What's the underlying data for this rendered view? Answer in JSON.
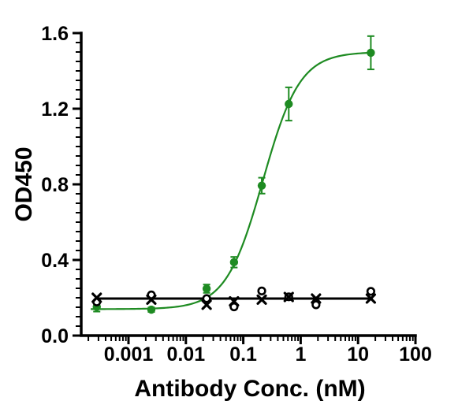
{
  "figure": {
    "background": "#ffffff",
    "text_color": "#000000"
  },
  "chart_data": {
    "type": "scatter",
    "title": "",
    "xlabel": "Antibody Conc. (nM)",
    "ylabel": "OD450",
    "x_scale": "log",
    "xlim": [
      0.00015,
      100
    ],
    "ylim": [
      0.0,
      1.6
    ],
    "x_major_ticks": [
      0.001,
      0.01,
      0.1,
      1,
      10,
      100
    ],
    "x_tick_labels": [
      "0.001",
      "0.01",
      "0.1",
      "1",
      "10",
      "100"
    ],
    "y_major_ticks": [
      0.0,
      0.4,
      0.8,
      1.2,
      1.6
    ],
    "y_tick_labels": [
      "0.0",
      "0.4",
      "0.8",
      "1.2",
      "1.6"
    ],
    "y_minor_step": 0.05,
    "grid": false,
    "legend": false,
    "series": [
      {
        "name": "green-filled-circles",
        "marker": "filled-circle",
        "color": "#1e8b22",
        "x": [
          0.00028,
          0.0025,
          0.023,
          0.069,
          0.21,
          0.62,
          16.7
        ],
        "y": [
          0.152,
          0.137,
          0.248,
          0.388,
          0.793,
          1.225,
          1.496
        ],
        "yerr": [
          0.025,
          0.012,
          0.022,
          0.028,
          0.042,
          0.088,
          0.088
        ],
        "fit": {
          "type": "4PL",
          "bottom": 0.14,
          "top": 1.5,
          "ec50": 0.22,
          "hill": 1.35,
          "x_start": 0.00022,
          "x_end": 16.7
        }
      },
      {
        "name": "black-open-circles",
        "marker": "open-circle",
        "color": "#000000",
        "x": [
          0.00028,
          0.0025,
          0.023,
          0.069,
          0.21,
          0.62,
          1.85,
          16.7
        ],
        "y": [
          0.178,
          0.215,
          0.196,
          0.152,
          0.236,
          0.205,
          0.163,
          0.234
        ],
        "fit": {
          "type": "flat",
          "value": 0.196,
          "x_start": 0.00028,
          "x_end": 16.7
        }
      },
      {
        "name": "black-x-markers",
        "marker": "x",
        "color": "#000000",
        "x": [
          0.00028,
          0.0025,
          0.023,
          0.069,
          0.21,
          0.62,
          1.85,
          16.7
        ],
        "y": [
          0.2,
          0.19,
          0.163,
          0.181,
          0.19,
          0.204,
          0.196,
          0.196
        ]
      }
    ]
  }
}
